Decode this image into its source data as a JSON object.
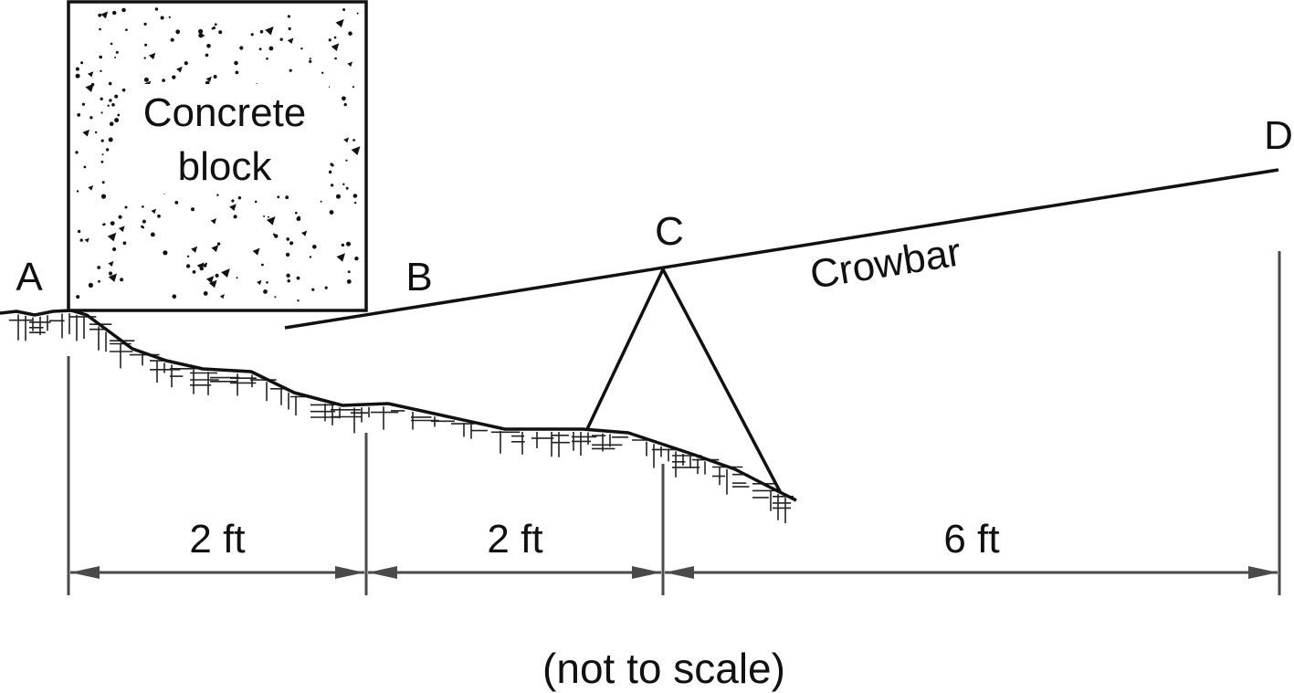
{
  "points": {
    "a": "A",
    "b": "B",
    "c": "C",
    "d": "D"
  },
  "block": {
    "line1": "Concrete",
    "line2": "block"
  },
  "bar": {
    "label": "Crowbar"
  },
  "dimensions": {
    "ab": "2 ft",
    "bc": "2 ft",
    "cd": "6 ft"
  },
  "note": "(not to scale)",
  "colors": {
    "ink": "#111111",
    "dimension": "#4a4a4a"
  }
}
